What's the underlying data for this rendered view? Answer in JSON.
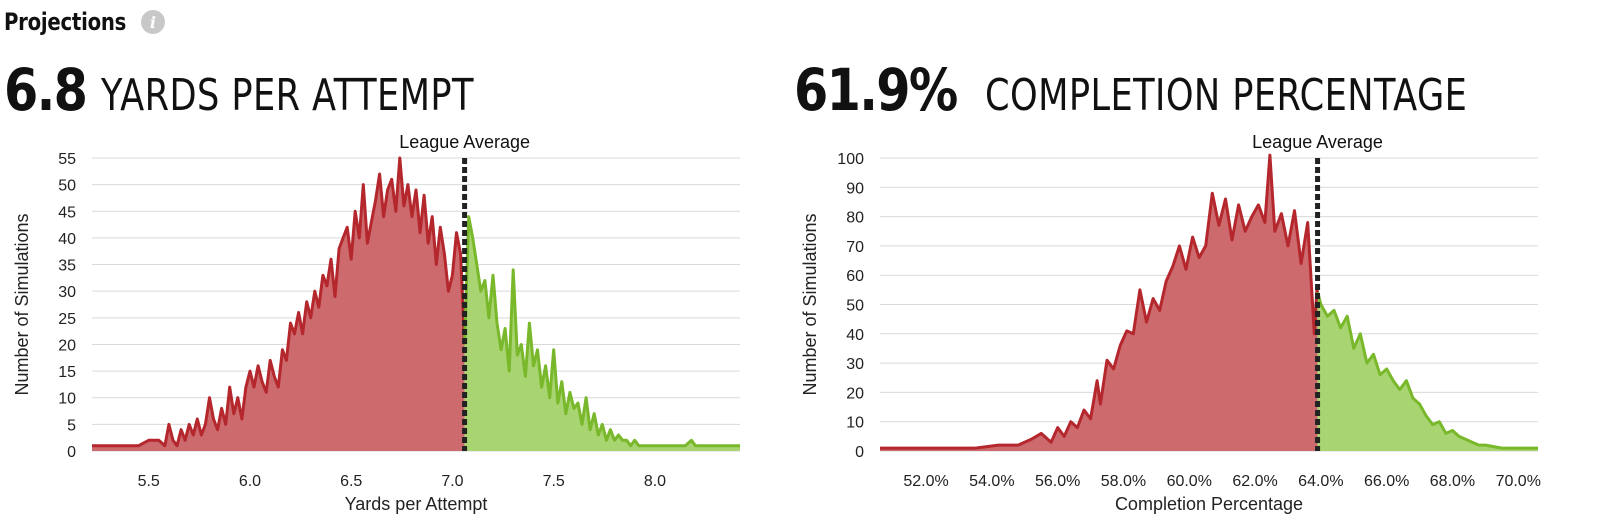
{
  "header": {
    "title": "Projections",
    "info_icon": "info-icon"
  },
  "colors": {
    "below": "#b4272d",
    "below_fill": "#cc6a6e",
    "above": "#78b82a",
    "above_fill": "#a9d472",
    "grid": "#d9d9d9",
    "avg_line": "#222222"
  },
  "chart_data": [
    {
      "type": "area",
      "stat_value": "6.8",
      "stat_label": "YARDS PER ATTEMPT",
      "xlabel": "Yards per Attempt",
      "ylabel": "Number of Simulations",
      "xlim": [
        5.22,
        8.42
      ],
      "ylim": [
        0,
        55
      ],
      "xticks": [
        5.5,
        6.0,
        6.5,
        7.0,
        7.5,
        8.0
      ],
      "xtick_labels": [
        "5.5",
        "6.0",
        "6.5",
        "7.0",
        "7.5",
        "8.0"
      ],
      "yticks": [
        0,
        5,
        10,
        15,
        20,
        25,
        30,
        35,
        40,
        45,
        50,
        55
      ],
      "ytick_labels": [
        "0",
        "5",
        "10",
        "15",
        "20",
        "25",
        "30",
        "35",
        "40",
        "45",
        "50",
        "55"
      ],
      "league_average": 7.06,
      "league_average_label": "League Average",
      "x": [
        5.22,
        5.3,
        5.4,
        5.45,
        5.5,
        5.55,
        5.58,
        5.6,
        5.62,
        5.64,
        5.66,
        5.68,
        5.7,
        5.72,
        5.74,
        5.76,
        5.78,
        5.8,
        5.82,
        5.84,
        5.86,
        5.88,
        5.9,
        5.92,
        5.94,
        5.96,
        5.98,
        6.0,
        6.02,
        6.04,
        6.06,
        6.08,
        6.1,
        6.12,
        6.14,
        6.16,
        6.18,
        6.2,
        6.22,
        6.24,
        6.26,
        6.28,
        6.3,
        6.32,
        6.34,
        6.36,
        6.38,
        6.4,
        6.42,
        6.44,
        6.46,
        6.48,
        6.5,
        6.52,
        6.54,
        6.56,
        6.58,
        6.6,
        6.62,
        6.64,
        6.66,
        6.68,
        6.7,
        6.72,
        6.74,
        6.76,
        6.78,
        6.8,
        6.82,
        6.84,
        6.86,
        6.88,
        6.9,
        6.92,
        6.94,
        6.96,
        6.98,
        7.0,
        7.02,
        7.04,
        7.06,
        7.08,
        7.1,
        7.12,
        7.14,
        7.16,
        7.18,
        7.2,
        7.22,
        7.24,
        7.26,
        7.28,
        7.3,
        7.32,
        7.34,
        7.36,
        7.38,
        7.4,
        7.42,
        7.44,
        7.46,
        7.48,
        7.5,
        7.52,
        7.54,
        7.56,
        7.58,
        7.6,
        7.62,
        7.64,
        7.66,
        7.68,
        7.7,
        7.72,
        7.74,
        7.76,
        7.78,
        7.8,
        7.82,
        7.84,
        7.86,
        7.88,
        7.9,
        7.92,
        7.94,
        7.96,
        7.98,
        8.0,
        8.05,
        8.1,
        8.15,
        8.18,
        8.2,
        8.25,
        8.3,
        8.35,
        8.42
      ],
      "y": [
        1,
        1,
        1,
        1,
        2,
        2,
        1,
        5,
        2,
        1,
        4,
        2,
        5,
        3,
        6,
        3,
        5,
        10,
        6,
        4,
        8,
        5,
        12,
        7,
        10,
        6,
        12,
        15,
        12,
        16,
        13,
        11,
        17,
        14,
        12,
        19,
        17,
        24,
        22,
        26,
        22,
        28,
        25,
        30,
        27,
        33,
        31,
        36,
        29,
        38,
        40,
        42,
        36,
        45,
        40,
        50,
        39,
        43,
        47,
        52,
        44,
        49,
        51,
        45,
        55,
        46,
        50,
        44,
        49,
        41,
        48,
        39,
        44,
        35,
        42,
        37,
        30,
        33,
        41,
        37,
        20,
        44,
        40,
        35,
        30,
        32,
        25,
        33,
        24,
        19,
        23,
        15,
        34,
        18,
        20,
        14,
        24,
        16,
        19,
        12,
        16,
        10,
        19,
        9,
        13,
        7,
        11,
        8,
        9,
        5,
        10,
        4,
        7,
        3,
        5,
        2,
        4,
        2,
        3,
        2,
        2,
        1,
        2,
        1,
        1,
        1,
        1,
        1,
        1,
        1,
        1,
        2,
        1,
        1,
        1,
        1,
        1
      ]
    },
    {
      "type": "area",
      "stat_value": "61.9%",
      "stat_label": "COMPLETION PERCENTAGE",
      "xlabel": "Completion Percentage",
      "ylabel": "Number of Simulations",
      "xlim": [
        50.6,
        70.6
      ],
      "ylim": [
        0,
        100
      ],
      "xticks": [
        52,
        54,
        56,
        58,
        60,
        62,
        64,
        66,
        68,
        70
      ],
      "xtick_labels": [
        "52.0%",
        "54.0%",
        "56.0%",
        "58.0%",
        "60.0%",
        "62.0%",
        "64.0%",
        "66.0%",
        "68.0%",
        "70.0%"
      ],
      "yticks": [
        0,
        10,
        20,
        30,
        40,
        50,
        60,
        70,
        80,
        90,
        100
      ],
      "ytick_labels": [
        "0",
        "10",
        "20",
        "30",
        "40",
        "50",
        "60",
        "70",
        "80",
        "90",
        "100"
      ],
      "league_average": 63.9,
      "league_average_label": "League Average",
      "x": [
        50.6,
        51.5,
        52.5,
        53.5,
        54.2,
        54.8,
        55.2,
        55.5,
        55.8,
        56.0,
        56.2,
        56.4,
        56.6,
        56.8,
        57.0,
        57.2,
        57.3,
        57.5,
        57.7,
        57.9,
        58.1,
        58.3,
        58.5,
        58.7,
        58.9,
        59.1,
        59.3,
        59.5,
        59.7,
        59.9,
        60.1,
        60.3,
        60.5,
        60.7,
        60.9,
        61.1,
        61.3,
        61.5,
        61.7,
        61.9,
        62.1,
        62.3,
        62.45,
        62.6,
        62.8,
        63.0,
        63.2,
        63.4,
        63.6,
        63.8,
        63.88,
        64.0,
        64.2,
        64.4,
        64.6,
        64.8,
        65.0,
        65.2,
        65.4,
        65.6,
        65.8,
        66.0,
        66.2,
        66.4,
        66.6,
        66.8,
        67.0,
        67.2,
        67.4,
        67.6,
        67.8,
        68.0,
        68.2,
        68.4,
        68.6,
        68.8,
        69.0,
        69.5,
        70.0,
        70.6
      ],
      "y": [
        1,
        1,
        1,
        1,
        2,
        2,
        4,
        6,
        3,
        8,
        5,
        10,
        8,
        14,
        11,
        24,
        16,
        31,
        28,
        36,
        41,
        40,
        55,
        44,
        52,
        48,
        58,
        63,
        70,
        62,
        73,
        66,
        70,
        88,
        77,
        86,
        72,
        84,
        75,
        80,
        84,
        78,
        101,
        75,
        81,
        70,
        82,
        64,
        78,
        40,
        55,
        50,
        46,
        48,
        42,
        46,
        35,
        40,
        30,
        33,
        26,
        28,
        24,
        21,
        24,
        18,
        16,
        12,
        9,
        10,
        6,
        7,
        5,
        4,
        3,
        2,
        2,
        1,
        1,
        1
      ]
    }
  ]
}
